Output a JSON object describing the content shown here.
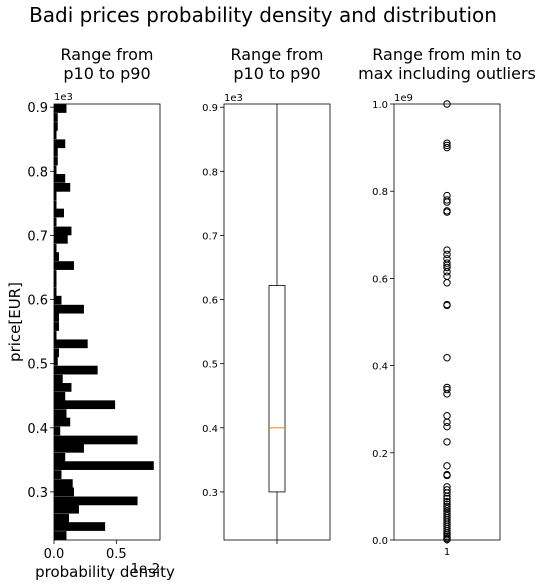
{
  "figure": {
    "title": "Badi prices probability density and distribution"
  },
  "chart_data": [
    {
      "type": "bar",
      "orientation": "horizontal",
      "title": "Range from\np10 to p90",
      "xlabel": "probability density",
      "ylabel": "price[EUR]",
      "x_offset_text": "1e-2",
      "y_offset_text": "1e3",
      "xlim": [
        0,
        0.85
      ],
      "ylim": [
        0.225,
        0.905
      ],
      "xticks": [
        0,
        0.5
      ],
      "xtick_labels": [
        "0.0",
        "0.5"
      ],
      "yticks": [
        0.3,
        0.4,
        0.5,
        0.6,
        0.7,
        0.8,
        0.9
      ],
      "ytick_labels": [
        "0.3",
        "0.4",
        "0.5",
        "0.6",
        "0.7",
        "0.8",
        "0.9"
      ],
      "bin_width": 0.0136,
      "bin_centers": [
        0.232,
        0.246,
        0.259,
        0.273,
        0.286,
        0.3,
        0.313,
        0.327,
        0.341,
        0.354,
        0.368,
        0.381,
        0.395,
        0.409,
        0.422,
        0.436,
        0.449,
        0.463,
        0.476,
        0.49,
        0.504,
        0.517,
        0.531,
        0.544,
        0.558,
        0.572,
        0.585,
        0.599,
        0.612,
        0.626,
        0.639,
        0.653,
        0.667,
        0.68,
        0.694,
        0.707,
        0.721,
        0.735,
        0.748,
        0.762,
        0.775,
        0.789,
        0.802,
        0.816,
        0.83,
        0.843,
        0.857,
        0.87,
        0.884,
        0.898
      ],
      "density": [
        0.1,
        0.41,
        0.12,
        0.2,
        0.67,
        0.16,
        0.15,
        0.06,
        0.8,
        0.09,
        0.24,
        0.67,
        0.05,
        0.13,
        0.1,
        0.49,
        0.09,
        0.14,
        0.07,
        0.35,
        0.03,
        0.04,
        0.27,
        0.02,
        0.04,
        0.04,
        0.24,
        0.06,
        0.02,
        0.02,
        0.02,
        0.16,
        0.04,
        0.02,
        0.11,
        0.14,
        0.02,
        0.08,
        0.02,
        0.02,
        0.13,
        0.09,
        0.02,
        0.03,
        0.03,
        0.09,
        0.02,
        0.03,
        0.03,
        0.1
      ]
    },
    {
      "type": "box",
      "title": "Range from\np10 to p90",
      "y_offset_text": "1e3",
      "ylim": [
        0.225,
        0.905
      ],
      "yticks": [
        0.3,
        0.4,
        0.5,
        0.6,
        0.7,
        0.8,
        0.9
      ],
      "ytick_labels": [
        "0.3",
        "0.4",
        "0.5",
        "0.6",
        "0.7",
        "0.8",
        "0.9"
      ],
      "whisker_low": 0.225,
      "q1": 0.3,
      "median": 0.4,
      "q3": 0.622,
      "whisker_high": 0.905,
      "median_color": "#ff7f0e"
    },
    {
      "type": "scatter",
      "title": "Range from min to\nmax including outliers",
      "y_offset_text": "1e9",
      "ylim": [
        0,
        1.0
      ],
      "yticks": [
        0.0,
        0.2,
        0.4,
        0.6,
        0.8,
        1.0
      ],
      "ytick_labels": [
        "0.0",
        "0.2",
        "0.4",
        "0.6",
        "0.8",
        "1.0"
      ],
      "xticks": [
        1
      ],
      "xtick_labels": [
        "1"
      ],
      "x": 1,
      "outliers": [
        1.0,
        0.91,
        0.905,
        0.9,
        0.79,
        0.78,
        0.775,
        0.755,
        0.752,
        0.665,
        0.655,
        0.645,
        0.635,
        0.63,
        0.625,
        0.615,
        0.605,
        0.59,
        0.54,
        0.538,
        0.418,
        0.35,
        0.345,
        0.335,
        0.285,
        0.27,
        0.26,
        0.225,
        0.17,
        0.15,
        0.148,
        0.122,
        0.115,
        0.108,
        0.1,
        0.095,
        0.088,
        0.082,
        0.077,
        0.072,
        0.066,
        0.061,
        0.056,
        0.051,
        0.046,
        0.041,
        0.036,
        0.031,
        0.026,
        0.021,
        0.016,
        0.012,
        0.008,
        0.004,
        0.001
      ]
    }
  ]
}
